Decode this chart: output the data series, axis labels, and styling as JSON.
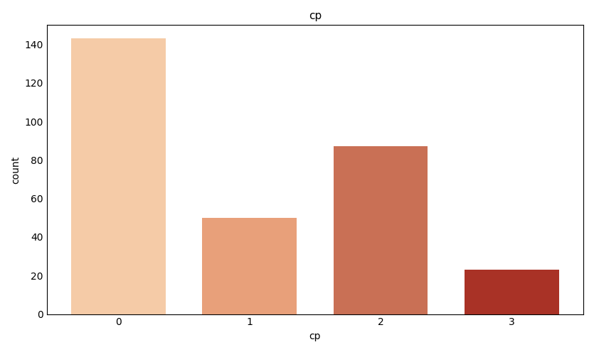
{
  "categories": [
    "0",
    "1",
    "2",
    "3"
  ],
  "values": [
    143,
    50,
    87,
    23
  ],
  "bar_colors": [
    "#F5CBA7",
    "#E8A07A",
    "#C97055",
    "#A93226"
  ],
  "title": "cp",
  "xlabel": "cp",
  "ylabel": "count",
  "ylim": [
    0,
    150
  ],
  "yticks": [
    0,
    20,
    40,
    60,
    80,
    100,
    120,
    140
  ],
  "background_color": "#ffffff",
  "title_fontsize": 11,
  "label_fontsize": 10,
  "tick_fontsize": 10,
  "bar_width": 0.72
}
